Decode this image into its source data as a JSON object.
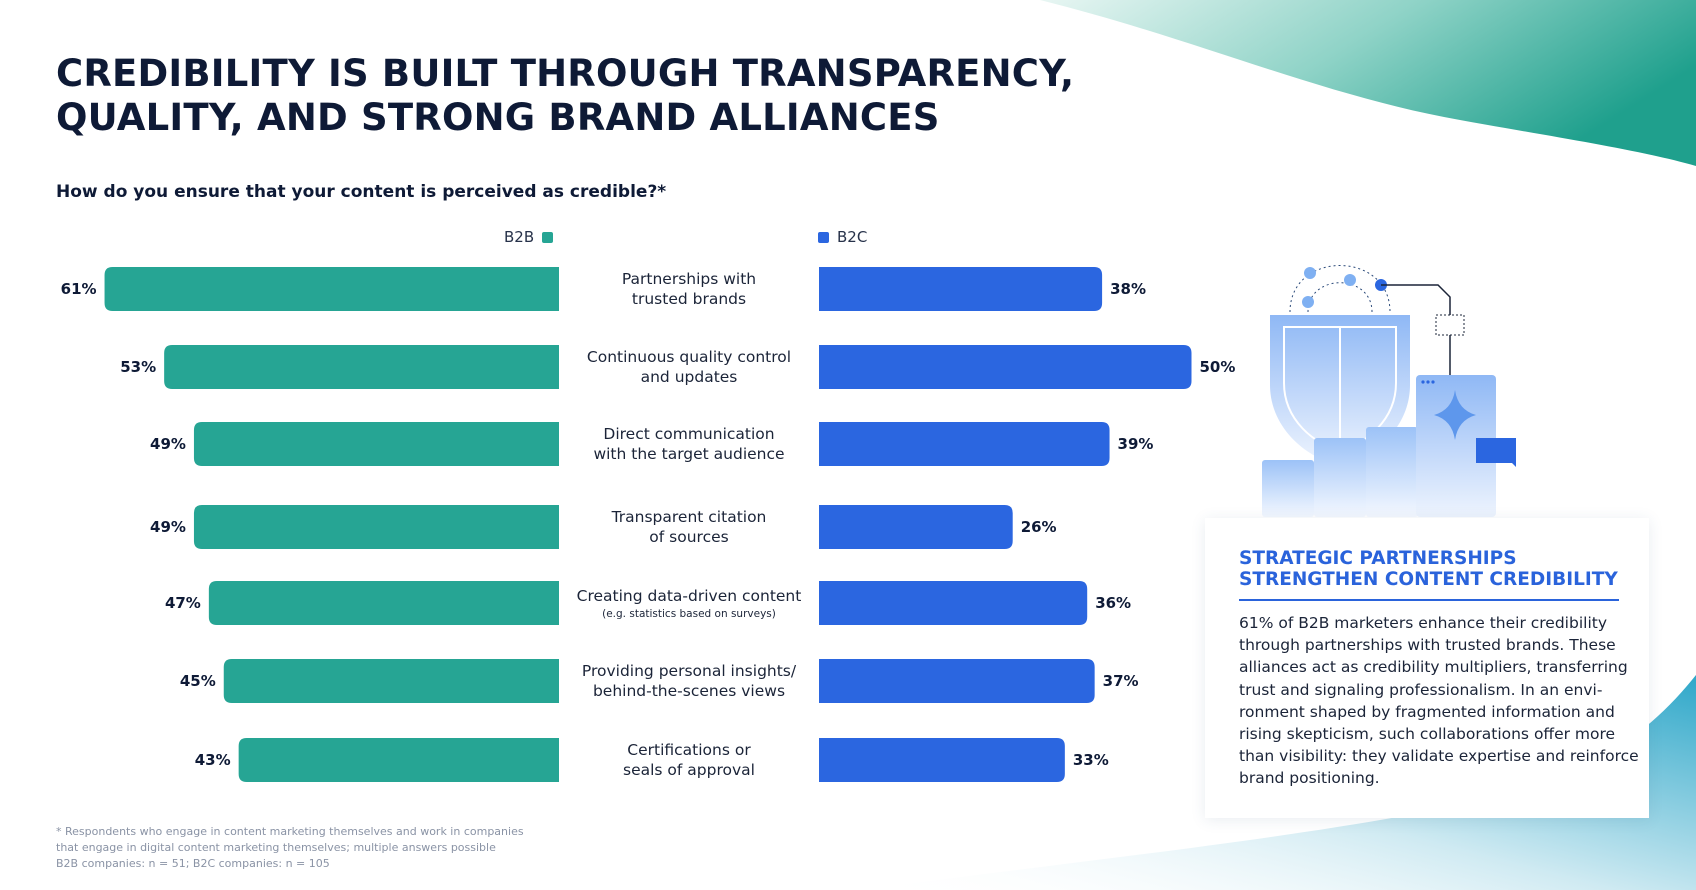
{
  "title": {
    "line1": "CREDIBILITY IS BUILT THROUGH TRANSPARENCY,",
    "line2": "QUALITY, AND STRONG BRAND ALLIANCES"
  },
  "question": "How do you ensure that your content is perceived as credible?*",
  "colors": {
    "b2b": "#26a594",
    "b2c": "#2b66e0",
    "accent": "#2a63db"
  },
  "chart_data": {
    "type": "bar",
    "orientation": "horizontal-diverging",
    "series": [
      {
        "name": "B2B",
        "values": [
          61,
          53,
          49,
          49,
          47,
          45,
          43
        ]
      },
      {
        "name": "B2C",
        "values": [
          38,
          50,
          39,
          26,
          36,
          37,
          33
        ]
      }
    ],
    "categories": [
      {
        "lines": [
          "Partnerships with",
          "trusted brands"
        ],
        "sub": ""
      },
      {
        "lines": [
          "Continuous quality control",
          "and updates"
        ],
        "sub": ""
      },
      {
        "lines": [
          "Direct communication",
          "with the target audience"
        ],
        "sub": ""
      },
      {
        "lines": [
          "Transparent citation",
          "of sources"
        ],
        "sub": ""
      },
      {
        "lines": [
          "Creating data-driven content"
        ],
        "sub": "(e.g. statistics based on surveys)"
      },
      {
        "lines": [
          "Providing personal insights/",
          "behind-the-scenes views"
        ],
        "sub": ""
      },
      {
        "lines": [
          "Certifications or",
          "seals of approval"
        ],
        "sub": ""
      }
    ],
    "value_suffix": "%",
    "legend_position": "top",
    "grid": false
  },
  "card": {
    "title_line1": "STRATEGIC PARTNERSHIPS",
    "title_line2": "STRENGTHEN CONTENT CREDIBILITY",
    "body_lines": [
      "61% of B2B marketers enhance their credibility",
      "through partnerships with trusted brands. These",
      "alliances act as credibility multipliers, transferring",
      "trust and signaling professionalism. In an envi-",
      "ronment shaped by fragmented information and",
      "rising skepticism, such collaborations offer more",
      "than visibility: they validate expertise and reinforce",
      "brand positioning."
    ]
  },
  "footnote": {
    "line1": "* Respondents who engage in content marketing themselves and work in companies",
    "line2": "that engage in digital content marketing themselves; multiple answers possible",
    "line3": "B2B companies: n = 51; B2C companies: n = 105"
  }
}
